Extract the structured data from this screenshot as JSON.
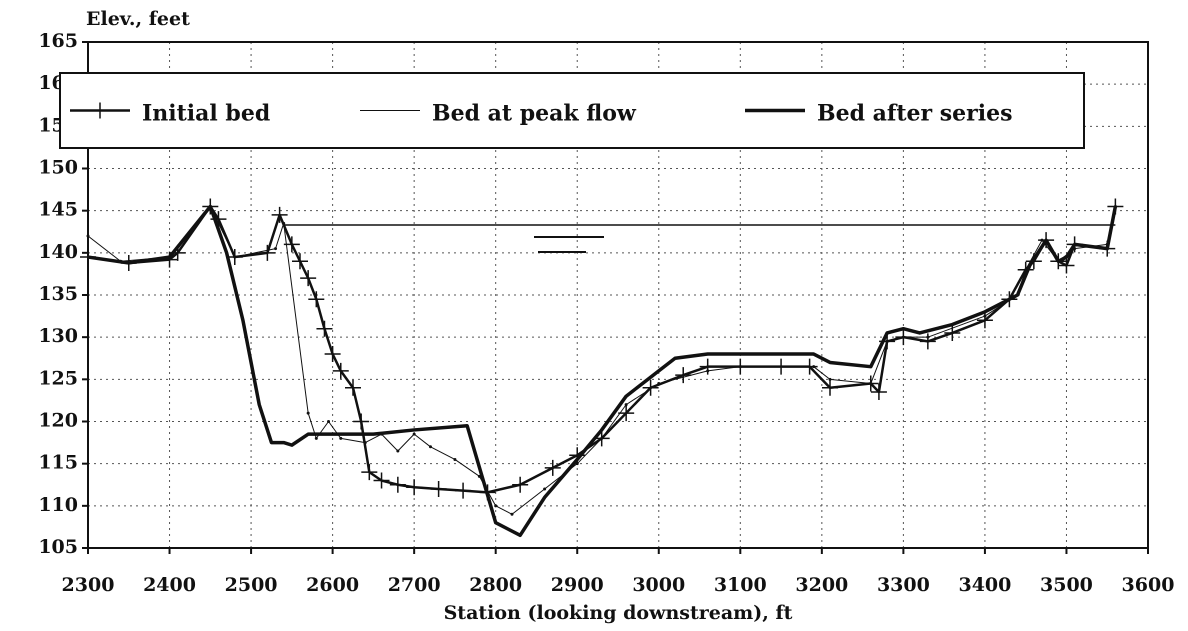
{
  "chart_data": {
    "type": "line",
    "ylabel": "Elev., feet",
    "xlabel": "Station (looking downstream), ft",
    "xlim": [
      2300,
      3600
    ],
    "xticks": [
      2300,
      2400,
      2500,
      2600,
      2700,
      2800,
      2900,
      3000,
      3100,
      3200,
      3300,
      3400,
      3500,
      3600
    ],
    "ylim": [
      105,
      165
    ],
    "yticks": [
      105,
      110,
      115,
      120,
      125,
      130,
      135,
      140,
      145,
      150,
      155,
      160,
      165
    ],
    "grid": true,
    "legend": "top",
    "series": [
      {
        "name": "Initial bed",
        "color": "#111",
        "marker": "plus",
        "width": 2.5,
        "x": [
          2300,
          2350,
          2400,
          2410,
          2450,
          2460,
          2480,
          2520,
          2535,
          2550,
          2560,
          2570,
          2580,
          2590,
          2600,
          2610,
          2625,
          2635,
          2645,
          2660,
          2680,
          2700,
          2730,
          2760,
          2790,
          2830,
          2870,
          2900,
          2930,
          2960,
          2990,
          3030,
          3060,
          3100,
          3150,
          3185,
          3210,
          3260,
          3270,
          3280,
          3300,
          3330,
          3360,
          3400,
          3430,
          3450,
          3460,
          3475,
          3490,
          3500,
          3510,
          3550,
          3560
        ],
        "values": [
          139.5,
          138.8,
          139.2,
          140,
          145.5,
          144,
          139.5,
          140,
          144.5,
          141,
          139,
          137,
          134.5,
          131,
          128,
          126,
          124,
          120,
          114,
          113,
          112.5,
          112.2,
          112,
          111.8,
          111.6,
          112.5,
          114.5,
          116,
          118,
          121,
          124,
          125.5,
          126.5,
          126.5,
          126.5,
          126.5,
          124,
          124.5,
          123.5,
          129.5,
          130,
          129.5,
          130.5,
          132,
          134.5,
          138,
          139,
          141.5,
          139,
          138.5,
          141,
          140.5,
          145.5
        ]
      },
      {
        "name": "Bed at peak flow",
        "color": "#111",
        "marker": "dot",
        "width": 1,
        "x": [
          2300,
          2340,
          2400,
          2450,
          2480,
          2530,
          2540,
          2570,
          2580,
          2595,
          2610,
          2640,
          2660,
          2680,
          2700,
          2720,
          2750,
          2780,
          2800,
          2820,
          2860,
          2900,
          2930,
          2960,
          3000,
          3060,
          3100,
          3190,
          3210,
          3260,
          3280,
          3300,
          3330,
          3400,
          3440,
          3450,
          3470,
          3490,
          3510,
          3550,
          3560
        ],
        "values": [
          142,
          139,
          139.5,
          145.5,
          139.5,
          140.5,
          143.5,
          121,
          118,
          120,
          118,
          117.5,
          118.5,
          116.5,
          118.5,
          117,
          115.5,
          113.5,
          110,
          109,
          112,
          115,
          118,
          122,
          124.5,
          126,
          126.5,
          126.5,
          125,
          124.5,
          129.5,
          130,
          130,
          132.5,
          135,
          138,
          141.5,
          139,
          140.5,
          141,
          145.5
        ]
      },
      {
        "name": "Bed after series",
        "color": "#111",
        "marker": "none",
        "width": 3.5,
        "x": [
          2300,
          2350,
          2400,
          2450,
          2470,
          2490,
          2510,
          2525,
          2540,
          2550,
          2570,
          2600,
          2650,
          2700,
          2765,
          2800,
          2830,
          2860,
          2900,
          2930,
          2960,
          3000,
          3020,
          3060,
          3100,
          3190,
          3210,
          3260,
          3280,
          3300,
          3320,
          3360,
          3400,
          3440,
          3455,
          3475,
          3490,
          3500,
          3510,
          3550,
          3560
        ],
        "values": [
          139.5,
          138.8,
          139.5,
          145.5,
          140,
          132,
          122,
          117.5,
          117.5,
          117.2,
          118.5,
          118.5,
          118.5,
          119,
          119.5,
          108,
          106.5,
          111,
          115.5,
          119,
          123,
          126,
          127.5,
          128,
          128,
          128,
          127,
          126.5,
          130.5,
          131,
          130.5,
          131.5,
          133,
          135,
          138.5,
          141.5,
          139,
          139.5,
          141,
          140.5,
          145.5
        ]
      }
    ],
    "reference_line": {
      "x": [
        2540,
        3560
      ],
      "values": [
        143.3,
        143.3
      ]
    }
  }
}
